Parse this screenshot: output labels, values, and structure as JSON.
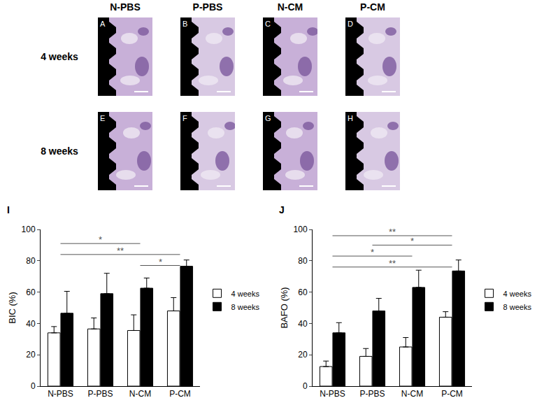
{
  "image_grid": {
    "columns": [
      "N-PBS",
      "P-PBS",
      "N-CM",
      "P-CM"
    ],
    "rows": [
      "4 weeks",
      "8 weeks"
    ],
    "panels": [
      [
        "A",
        "B",
        "C",
        "D"
      ],
      [
        "E",
        "F",
        "G",
        "H"
      ]
    ]
  },
  "chart_data": [
    {
      "type": "bar",
      "title": "I",
      "y_label": "BIC (%)",
      "categories": [
        "N-PBS",
        "P-PBS",
        "N-CM",
        "P-CM"
      ],
      "series": [
        {
          "name": "4 weeks",
          "color": "#ffffff",
          "values": [
            34,
            36.5,
            35.5,
            48
          ],
          "errors": [
            4,
            7,
            10,
            8.5
          ]
        },
        {
          "name": "8 weeks",
          "color": "#000000",
          "values": [
            46.5,
            59,
            62.5,
            76.5
          ],
          "errors": [
            14,
            13,
            6.5,
            4
          ]
        }
      ],
      "significance": [
        {
          "from": "N-PBS",
          "to": "N-CM",
          "y": 91,
          "label": "*"
        },
        {
          "from": "N-PBS",
          "to": "P-CM",
          "y": 84,
          "label": "**"
        },
        {
          "from": "N-CM",
          "to": "P-CM",
          "y": 77,
          "label": "*"
        }
      ],
      "ylim": [
        0,
        100
      ],
      "yticks": [
        0,
        20,
        40,
        60,
        80,
        100
      ],
      "grid": false,
      "legend": "right"
    },
    {
      "type": "bar",
      "title": "J",
      "y_label": "BAFO (%)",
      "categories": [
        "N-PBS",
        "P-PBS",
        "N-CM",
        "P-CM"
      ],
      "series": [
        {
          "name": "4 weeks",
          "color": "#ffffff",
          "values": [
            12.5,
            19,
            25,
            44
          ],
          "errors": [
            3.5,
            5,
            6,
            3.5
          ]
        },
        {
          "name": "8 weeks",
          "color": "#000000",
          "values": [
            34,
            48,
            63,
            73.5
          ],
          "errors": [
            6.5,
            8,
            11,
            7
          ]
        }
      ],
      "significance": [
        {
          "from": "N-PBS",
          "to": "P-CM",
          "y": 96,
          "label": "**"
        },
        {
          "from": "P-PBS",
          "to": "P-CM",
          "y": 90,
          "label": "*"
        },
        {
          "from": "N-PBS",
          "to": "N-CM",
          "y": 83,
          "label": "*"
        },
        {
          "from": "N-PBS",
          "to": "P-CM",
          "y": 76,
          "label": "**"
        }
      ],
      "ylim": [
        0,
        100
      ],
      "yticks": [
        0,
        20,
        40,
        60,
        80,
        100
      ],
      "grid": false,
      "legend": "right"
    }
  ]
}
